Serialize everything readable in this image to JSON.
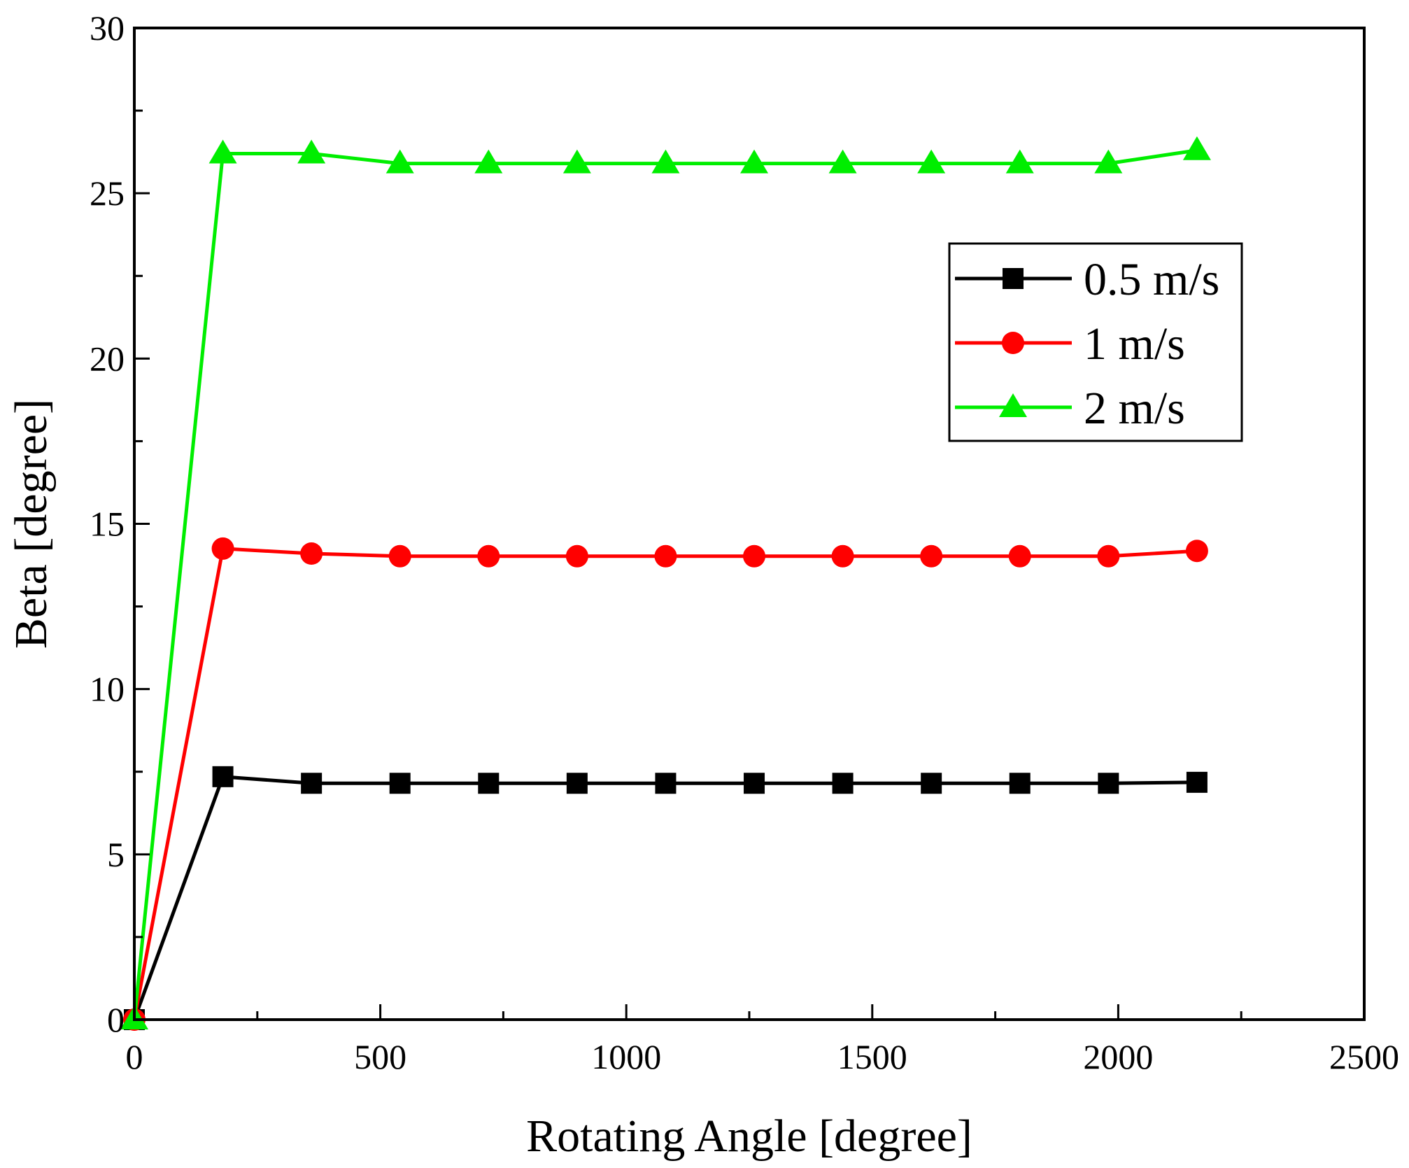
{
  "chart_data": {
    "type": "line",
    "title": "",
    "xlabel": "Rotating Angle [degree]",
    "ylabel": "Beta [degree]",
    "xlim": [
      0,
      2500
    ],
    "ylim": [
      0,
      30
    ],
    "x_ticks": [
      0,
      500,
      1000,
      1500,
      2000,
      2500
    ],
    "y_ticks": [
      0,
      5,
      10,
      15,
      20,
      25,
      30
    ],
    "grid": false,
    "legend_position": "upper-right",
    "x": [
      0,
      180,
      360,
      540,
      720,
      900,
      1080,
      1260,
      1440,
      1620,
      1800,
      1980,
      2160
    ],
    "series": [
      {
        "name": "0.5 m/s",
        "color": "#000000",
        "marker": "square",
        "values": [
          0,
          7.35,
          7.15,
          7.15,
          7.15,
          7.15,
          7.15,
          7.15,
          7.15,
          7.15,
          7.15,
          7.15,
          7.18
        ]
      },
      {
        "name": "1 m/s",
        "color": "#ff0000",
        "marker": "circle",
        "values": [
          0,
          14.25,
          14.1,
          14.02,
          14.02,
          14.02,
          14.02,
          14.02,
          14.02,
          14.02,
          14.02,
          14.02,
          14.18
        ]
      },
      {
        "name": "2 m/s",
        "color": "#00ee00",
        "marker": "triangle",
        "values": [
          0,
          26.2,
          26.2,
          25.9,
          25.9,
          25.9,
          25.9,
          25.9,
          25.9,
          25.9,
          25.9,
          25.9,
          26.3
        ]
      }
    ]
  }
}
